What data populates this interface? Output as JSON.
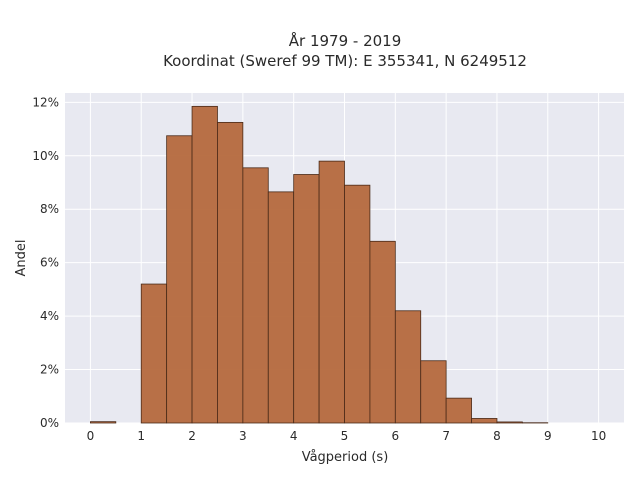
{
  "chart_data": {
    "type": "bar",
    "title_line1": "År 1979 - 2019",
    "title_line2": "Koordinat (Sweref 99 TM): E 355341, N 6249512",
    "xlabel": "Vågperiod (s)",
    "ylabel": "Andel",
    "xlim": [
      -0.5,
      10.5
    ],
    "ylim": [
      0,
      0.1235
    ],
    "bin_width": 0.5,
    "bins": [
      {
        "x": 0.0,
        "value": 0.0005
      },
      {
        "x": 0.5,
        "value": 0.0
      },
      {
        "x": 1.0,
        "value": 0.052
      },
      {
        "x": 1.5,
        "value": 0.1075
      },
      {
        "x": 2.0,
        "value": 0.1185
      },
      {
        "x": 2.5,
        "value": 0.1125
      },
      {
        "x": 3.0,
        "value": 0.0955
      },
      {
        "x": 3.5,
        "value": 0.0865
      },
      {
        "x": 4.0,
        "value": 0.093
      },
      {
        "x": 4.5,
        "value": 0.098
      },
      {
        "x": 5.0,
        "value": 0.089
      },
      {
        "x": 5.5,
        "value": 0.068
      },
      {
        "x": 6.0,
        "value": 0.042
      },
      {
        "x": 6.5,
        "value": 0.0233
      },
      {
        "x": 7.0,
        "value": 0.0093
      },
      {
        "x": 7.5,
        "value": 0.0017
      },
      {
        "x": 8.0,
        "value": 0.0004
      },
      {
        "x": 8.5,
        "value": 0.0001
      }
    ],
    "x_ticks": [
      {
        "value": 0,
        "label": "0"
      },
      {
        "value": 1,
        "label": "1"
      },
      {
        "value": 2,
        "label": "2"
      },
      {
        "value": 3,
        "label": "3"
      },
      {
        "value": 4,
        "label": "4"
      },
      {
        "value": 5,
        "label": "5"
      },
      {
        "value": 6,
        "label": "6"
      },
      {
        "value": 7,
        "label": "7"
      },
      {
        "value": 8,
        "label": "8"
      },
      {
        "value": 9,
        "label": "9"
      },
      {
        "value": 10,
        "label": "10"
      }
    ],
    "y_ticks": [
      {
        "value": 0,
        "label": "0%"
      },
      {
        "value": 0.02,
        "label": "2%"
      },
      {
        "value": 0.04,
        "label": "4%"
      },
      {
        "value": 0.06,
        "label": "6%"
      },
      {
        "value": 0.08,
        "label": "8%"
      },
      {
        "value": 0.1,
        "label": "10%"
      },
      {
        "value": 0.12,
        "label": "12%"
      }
    ],
    "grid": true,
    "colors": {
      "bar_fill": "#b5693d",
      "bar_edge": "#4a2a18",
      "plot_bg": "#e8e9f1",
      "grid": "#ffffff"
    }
  }
}
